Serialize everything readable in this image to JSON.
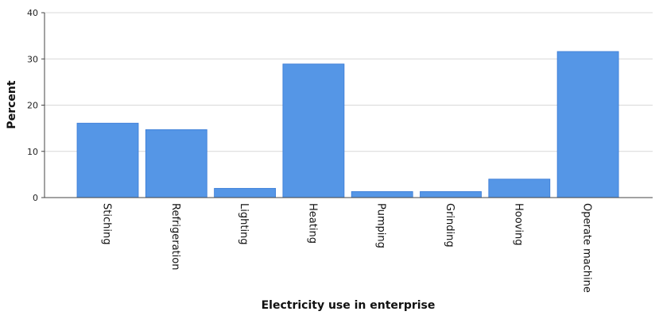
{
  "chart_data": {
    "type": "bar",
    "title": "",
    "xlabel": "Electricity use in enterprise",
    "ylabel": "Percent",
    "categories": [
      "Stiching",
      "Refrigeration",
      "Lighting",
      "Heating",
      "Pumping",
      "Grinding",
      "Hooving",
      "Operate machine"
    ],
    "values": [
      16.1,
      14.7,
      2.0,
      28.9,
      1.3,
      1.3,
      4.0,
      31.6
    ],
    "ylim": [
      0,
      40
    ],
    "yticks": [
      0,
      10,
      20,
      30,
      40
    ],
    "grid": true,
    "legend": "none",
    "colors": {
      "bar": "#5596e6",
      "bar_stroke": "#3a7bd5",
      "grid": "#d8d8d8",
      "axis": "#444444"
    }
  }
}
